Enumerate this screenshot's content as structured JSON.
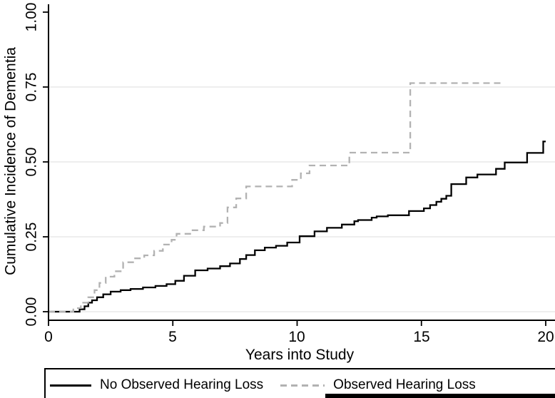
{
  "chart_data": {
    "type": "line",
    "subtype": "step",
    "title": "",
    "xlabel": "Years into Study",
    "ylabel": "Cumulative Incidence of Dementia",
    "xlim": [
      0,
      20
    ],
    "ylim": [
      0,
      1
    ],
    "grid": "horizontal",
    "grid_values": [
      0,
      0.25,
      0.5,
      0.75
    ],
    "grid_color": "#e9e9e9",
    "axis_color": "#000000",
    "background_color": "#ffffff",
    "xticks": [
      {
        "label": "0",
        "value": 0
      },
      {
        "label": "5",
        "value": 5
      },
      {
        "label": "10",
        "value": 10
      },
      {
        "label": "15",
        "value": 15
      },
      {
        "label": "20",
        "value": 20
      }
    ],
    "yticks": [
      {
        "label": "0.00",
        "value": 0
      },
      {
        "label": "0.25",
        "value": 0.25
      },
      {
        "label": "0.50",
        "value": 0.5
      },
      {
        "label": "0.75",
        "value": 0.75
      },
      {
        "label": "1.00",
        "value": 1
      }
    ],
    "legend": {
      "position": "bottom",
      "entries": [
        {
          "label": "No Observed Hearing Loss",
          "style": "solid",
          "color": "#000000"
        },
        {
          "label": "Observed Hearing Loss",
          "style": "dashed",
          "color": "#b2b2b2"
        }
      ]
    },
    "series": [
      {
        "name": "No Observed Hearing Loss",
        "color": "#000000",
        "dash": "solid",
        "points": [
          [
            0,
            0
          ],
          [
            1.25,
            0.008
          ],
          [
            1.45,
            0.018
          ],
          [
            1.6,
            0.03
          ],
          [
            1.75,
            0.038
          ],
          [
            1.95,
            0.048
          ],
          [
            2.2,
            0.058
          ],
          [
            2.5,
            0.067
          ],
          [
            2.9,
            0.072
          ],
          [
            3.3,
            0.076
          ],
          [
            3.8,
            0.081
          ],
          [
            4.3,
            0.086
          ],
          [
            4.75,
            0.092
          ],
          [
            5.1,
            0.103
          ],
          [
            5.45,
            0.12
          ],
          [
            5.9,
            0.138
          ],
          [
            6.4,
            0.144
          ],
          [
            6.9,
            0.152
          ],
          [
            7.3,
            0.161
          ],
          [
            7.7,
            0.176
          ],
          [
            7.95,
            0.189
          ],
          [
            8.3,
            0.205
          ],
          [
            8.7,
            0.214
          ],
          [
            9.15,
            0.22
          ],
          [
            9.6,
            0.231
          ],
          [
            10.1,
            0.252
          ],
          [
            10.7,
            0.268
          ],
          [
            11.2,
            0.28
          ],
          [
            11.8,
            0.291
          ],
          [
            12.3,
            0.302
          ],
          [
            12.45,
            0.306
          ],
          [
            13.0,
            0.314
          ],
          [
            13.2,
            0.318
          ],
          [
            13.65,
            0.322
          ],
          [
            14.5,
            0.336
          ],
          [
            15.1,
            0.345
          ],
          [
            15.35,
            0.356
          ],
          [
            15.6,
            0.367
          ],
          [
            15.8,
            0.377
          ],
          [
            16.0,
            0.387
          ],
          [
            16.2,
            0.426
          ],
          [
            16.8,
            0.448
          ],
          [
            17.25,
            0.458
          ],
          [
            18.0,
            0.477
          ],
          [
            18.35,
            0.498
          ],
          [
            19.25,
            0.53
          ],
          [
            19.9,
            0.568
          ],
          [
            20.0,
            0.568
          ]
        ]
      },
      {
        "name": "Observed Hearing Loss",
        "color": "#b2b2b2",
        "dash": "dashed",
        "points": [
          [
            0,
            0
          ],
          [
            1.0,
            0.012
          ],
          [
            1.3,
            0.03
          ],
          [
            1.6,
            0.048
          ],
          [
            1.85,
            0.072
          ],
          [
            2.05,
            0.096
          ],
          [
            2.3,
            0.117
          ],
          [
            2.65,
            0.135
          ],
          [
            3.0,
            0.165
          ],
          [
            3.45,
            0.178
          ],
          [
            3.85,
            0.188
          ],
          [
            4.25,
            0.203
          ],
          [
            4.6,
            0.224
          ],
          [
            4.95,
            0.24
          ],
          [
            5.15,
            0.26
          ],
          [
            5.7,
            0.272
          ],
          [
            6.25,
            0.284
          ],
          [
            6.9,
            0.296
          ],
          [
            7.2,
            0.348
          ],
          [
            7.55,
            0.378
          ],
          [
            7.95,
            0.418
          ],
          [
            9.8,
            0.44
          ],
          [
            10.15,
            0.462
          ],
          [
            10.5,
            0.488
          ],
          [
            12.1,
            0.531
          ],
          [
            14.55,
            0.763
          ],
          [
            18.2,
            0.763
          ]
        ]
      }
    ]
  }
}
